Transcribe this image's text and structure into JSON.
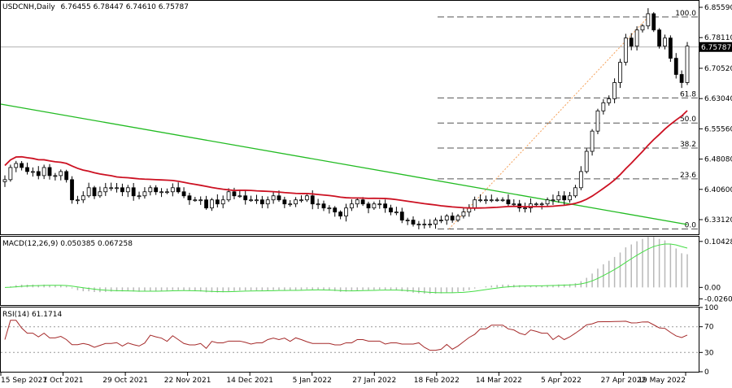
{
  "chart_data": [
    {
      "type": "candlestick",
      "symbol_label": "USDCNH,Daily",
      "ohlc_label": "6.76455 6.78447 6.74610 6.75787",
      "price_axis_ticks": [
        "6.85590",
        "6.78110",
        "6.70520",
        "6.63040",
        "6.55560",
        "6.48080",
        "6.40600",
        "6.33120"
      ],
      "price_axis_values": [
        6.8559,
        6.7811,
        6.7052,
        6.6304,
        6.5556,
        6.4808,
        6.406,
        6.3312
      ],
      "ylim": [
        6.295,
        6.872
      ],
      "current_price": 6.75787,
      "current_price_label": "6.75787",
      "time_labels": [
        "15 Sep 2021",
        "7 Oct 2021",
        "29 Oct 2021",
        "22 Nov 2021",
        "14 Dec 2021",
        "5 Jan 2022",
        "27 Jan 2022",
        "18 Feb 2022",
        "14 Mar 2022",
        "5 Apr 2022",
        "27 Apr 2022",
        "19 May 2022"
      ],
      "fibonacci": {
        "levels": [
          {
            "label": "100.0",
            "price": 6.832
          },
          {
            "label": "61.8",
            "price": 6.632
          },
          {
            "label": "50.0",
            "price": 6.57
          },
          {
            "label": "38.2",
            "price": 6.508
          },
          {
            "label": "23.6",
            "price": 6.432
          },
          {
            "label": "0.0",
            "price": 6.308
          }
        ]
      },
      "closes": [
        6.43,
        6.46,
        6.47,
        6.46,
        6.45,
        6.45,
        6.44,
        6.46,
        6.44,
        6.44,
        6.45,
        6.43,
        6.38,
        6.38,
        6.39,
        6.41,
        6.39,
        6.4,
        6.41,
        6.41,
        6.41,
        6.4,
        6.41,
        6.39,
        6.39,
        6.4,
        6.41,
        6.4,
        6.4,
        6.4,
        6.41,
        6.4,
        6.39,
        6.38,
        6.38,
        6.38,
        6.36,
        6.38,
        6.37,
        6.38,
        6.4,
        6.39,
        6.39,
        6.38,
        6.38,
        6.38,
        6.37,
        6.38,
        6.39,
        6.38,
        6.37,
        6.37,
        6.38,
        6.38,
        6.39,
        6.37,
        6.37,
        6.36,
        6.36,
        6.35,
        6.34,
        6.36,
        6.37,
        6.38,
        6.37,
        6.36,
        6.37,
        6.37,
        6.36,
        6.35,
        6.35,
        6.33,
        6.33,
        6.32,
        6.32,
        6.32,
        6.32,
        6.33,
        6.33,
        6.34,
        6.33,
        6.34,
        6.35,
        6.36,
        6.38,
        6.38,
        6.38,
        6.38,
        6.38,
        6.38,
        6.37,
        6.37,
        6.36,
        6.36,
        6.37,
        6.37,
        6.37,
        6.38,
        6.38,
        6.39,
        6.38,
        6.39,
        6.41,
        6.45,
        6.5,
        6.55,
        6.6,
        6.62,
        6.63,
        6.67,
        6.72,
        6.78,
        6.76,
        6.8,
        6.81,
        6.84,
        6.8,
        6.76,
        6.78,
        6.73,
        6.69,
        6.67,
        6.76
      ]
    },
    {
      "type": "line",
      "indicator": "MACD",
      "label": "MACD(12,26,9) 0.050385 0.067258",
      "axis_ticks": [
        "0.104286",
        "0.00",
        "-0.026097"
      ],
      "axis_values": [
        0.104286,
        0.0,
        -0.026097
      ],
      "ylim": [
        -0.04,
        0.115
      ]
    },
    {
      "type": "line",
      "indicator": "RSI",
      "label": "RSI(14) 61.1714",
      "axis_ticks": [
        "100",
        "70",
        "30",
        "0"
      ],
      "axis_values": [
        100,
        70,
        30,
        0
      ],
      "ylim": [
        0,
        100
      ],
      "guide_levels": [
        70,
        30
      ]
    }
  ]
}
